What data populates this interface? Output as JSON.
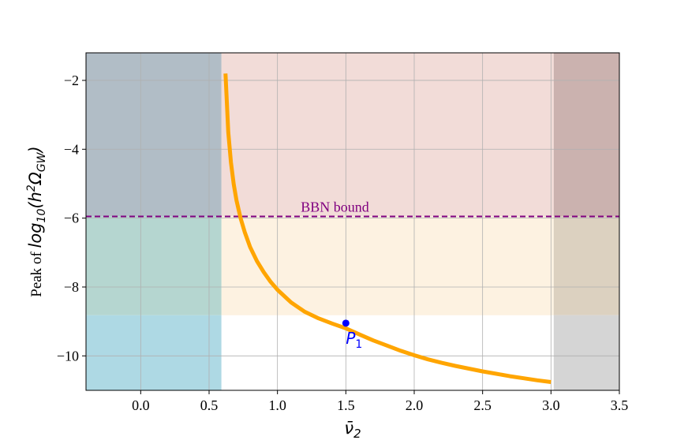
{
  "chart_data": {
    "type": "line",
    "xlabel": "ν̄",
    "xlabel_sub": "2",
    "ylabel_prefix": "Peak of ",
    "ylabel_math": "log",
    "ylabel_sub1": "10",
    "ylabel_mid": "(h",
    "ylabel_sup": "2",
    "ylabel_omega": "Ω",
    "ylabel_sub2": "GW",
    "ylabel_close": ")",
    "xlim": [
      -0.4,
      3.5
    ],
    "ylim": [
      -11.0,
      -1.2
    ],
    "xticks": [
      0.0,
      0.5,
      1.0,
      1.5,
      2.0,
      2.5,
      3.0,
      3.5
    ],
    "xtick_labels": [
      "0.0",
      "0.5",
      "1.0",
      "1.5",
      "2.0",
      "2.5",
      "3.0",
      "3.5"
    ],
    "yticks": [
      -2,
      -4,
      -6,
      -8,
      -10
    ],
    "ytick_labels": [
      "−2",
      "−4",
      "−6",
      "−8",
      "−10"
    ],
    "grid": true,
    "regions": [
      {
        "x0": 0.59,
        "x1": 3.02,
        "y0": -5.95,
        "y1": -1.2,
        "color": "#f2dcd8"
      },
      {
        "x0": 0.59,
        "x1": 3.02,
        "y0": -8.82,
        "y1": -5.95,
        "color": "#fdf2e1"
      },
      {
        "x0": -0.4,
        "x1": 0.59,
        "y0": -5.95,
        "y1": -1.2,
        "color": "#b1bdc6"
      },
      {
        "x0": -0.4,
        "x1": 0.59,
        "y0": -8.82,
        "y1": -5.95,
        "color": "#b5d6d0"
      },
      {
        "x0": -0.4,
        "x1": 0.59,
        "y0": -11.0,
        "y1": -8.82,
        "color": "#aed9e4"
      },
      {
        "x0": 3.02,
        "x1": 3.5,
        "y0": -5.95,
        "y1": -1.2,
        "color": "#cbb2af"
      },
      {
        "x0": 3.02,
        "x1": 3.5,
        "y0": -8.82,
        "y1": -5.95,
        "color": "#dcd1c0"
      },
      {
        "x0": 3.02,
        "x1": 3.5,
        "y0": -11.0,
        "y1": -8.82,
        "color": "#d5d5d5"
      }
    ],
    "series": [
      {
        "color": "#ffa500",
        "x": [
          0.62,
          0.64,
          0.66,
          0.68,
          0.7,
          0.73,
          0.76,
          0.8,
          0.85,
          0.9,
          0.95,
          1.0,
          1.1,
          1.2,
          1.3,
          1.4,
          1.5,
          1.6,
          1.7,
          1.8,
          1.9,
          2.0,
          2.1,
          2.2,
          2.3,
          2.4,
          2.5,
          2.6,
          2.7,
          2.8,
          2.9,
          3.0
        ],
        "y": [
          -1.8,
          -3.5,
          -4.38,
          -5.01,
          -5.48,
          -6.0,
          -6.4,
          -6.84,
          -7.25,
          -7.57,
          -7.85,
          -8.08,
          -8.45,
          -8.72,
          -8.91,
          -9.06,
          -9.2,
          -9.38,
          -9.55,
          -9.7,
          -9.85,
          -9.98,
          -10.1,
          -10.2,
          -10.29,
          -10.37,
          -10.45,
          -10.52,
          -10.59,
          -10.65,
          -10.71,
          -10.76
        ]
      }
    ],
    "hline": {
      "y": -5.95,
      "color": "#800080",
      "label": "BBN bound",
      "label_x": 1.42
    },
    "point": {
      "x": 1.5,
      "y": -9.05,
      "label": "P",
      "label_sub": "1",
      "color": "#0000ff"
    }
  }
}
